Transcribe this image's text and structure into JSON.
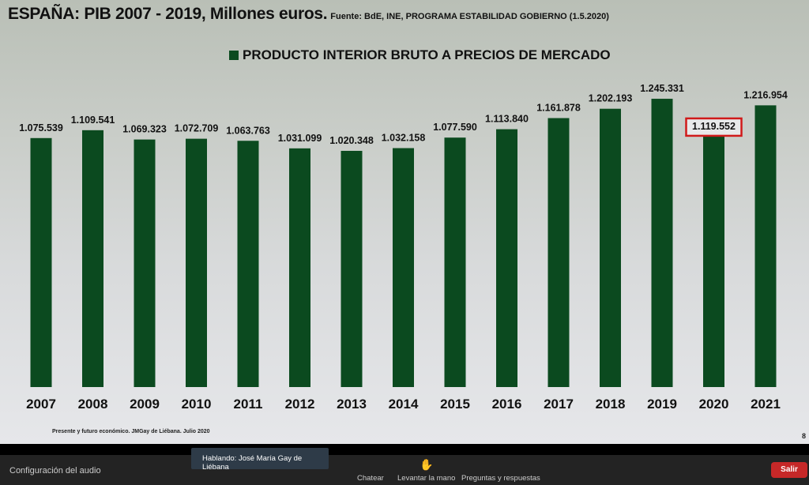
{
  "slide": {
    "title": "ESPAÑA: PIB 2007 - 2019, Millones euros.",
    "source": "Fuente: BdE, INE, PROGRAMA ESTABILIDAD GOBIERNO (1.5.2020)",
    "footer": "Presente y futuro económico. JMGay de Liébana. Julio 2020",
    "page": "8"
  },
  "chart_data": {
    "type": "bar",
    "title": "ESPAÑA: PIB 2007 - 2019, Millones euros.",
    "legend": "PRODUCTO INTERIOR BRUTO A PRECIOS DE MERCADO",
    "legend_position": "top-center",
    "categories": [
      "2007",
      "2008",
      "2009",
      "2010",
      "2011",
      "2012",
      "2013",
      "2014",
      "2015",
      "2016",
      "2017",
      "2018",
      "2019",
      "2020",
      "2021"
    ],
    "values": [
      1075539,
      1109541,
      1069323,
      1072709,
      1063763,
      1031099,
      1020348,
      1032158,
      1077590,
      1113840,
      1161878,
      1202193,
      1245331,
      1119552,
      1216954
    ],
    "labels": [
      "1.075.539",
      "1.109.541",
      "1.069.323",
      "1.072.709",
      "1.063.763",
      "1.031.099",
      "1.020.348",
      "1.032.158",
      "1.077.590",
      "1.113.840",
      "1.161.878",
      "1.202.193",
      "1.245.331",
      "1.119.552",
      "1.216.954"
    ],
    "highlighted": "2020",
    "ylim": [
      0,
      1672000
    ],
    "grid": false,
    "bar_color": "#0b4a1f",
    "highlight_color": "#d01a1a"
  },
  "zoom": {
    "audio_settings": "Configuración del audio",
    "speaking": "Hablando: José María Gay de Liébana",
    "chat": "Chatear",
    "raise_hand": "Levantar la mano",
    "qa": "Preguntas y respuestas",
    "leave": "Salir",
    "hand_icon": "✋"
  }
}
